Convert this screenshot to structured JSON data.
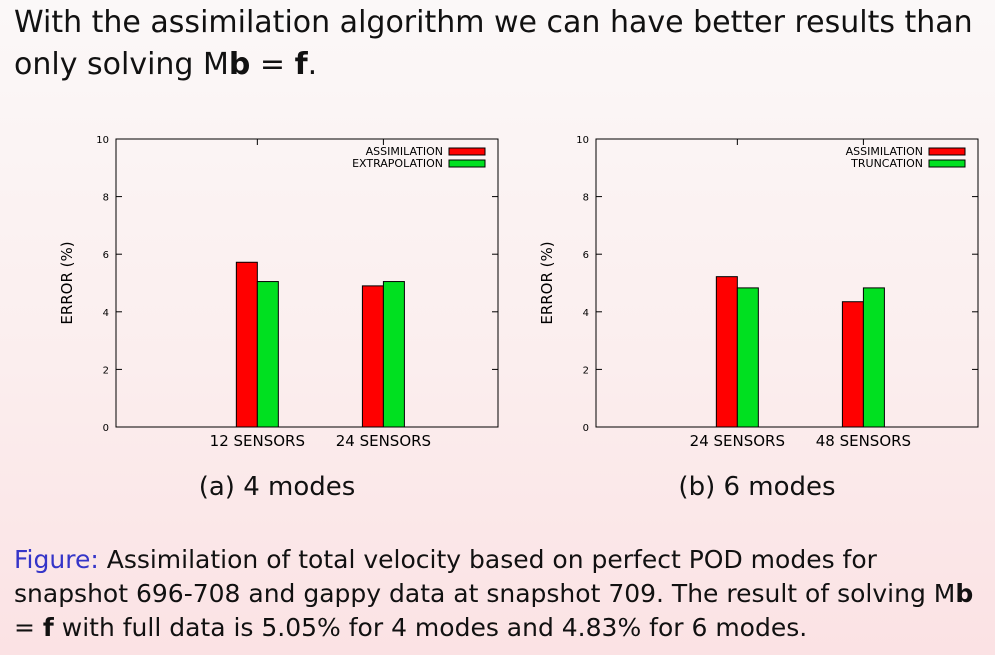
{
  "slide": {
    "heading_pre": "With the assimilation algorithm we can have better results than only solving M",
    "heading_bold_b": "b",
    "heading_eq": " = ",
    "heading_bold_f": "f",
    "heading_post": "."
  },
  "subcaptions": [
    "(a) 4 modes",
    "(b) 6 modes"
  ],
  "figure": {
    "label": "Figure:",
    "text1": " Assimilation of total velocity based on perfect POD modes for snapshot 696-708 and gappy data at snapshot 709. The result of solving M",
    "bold_b": "b",
    "eq": " = ",
    "bold_f": "f",
    "text2": " with full data is 5.05% for 4 modes and 4.83% for 6 modes."
  },
  "colors": {
    "red": "#ff0000",
    "green": "#00e020",
    "caption_label": "#3535c8"
  },
  "chart_data": [
    {
      "type": "bar",
      "categories": [
        "12 SENSORS",
        "24 SENSORS"
      ],
      "series": [
        {
          "name": "ASSIMILATION",
          "values": [
            5.72,
            4.9
          ],
          "color": "#ff0000"
        },
        {
          "name": "EXTRAPOLATION",
          "values": [
            5.05,
            5.05
          ],
          "color": "#00e020"
        }
      ],
      "ylabel": "ERROR (%)",
      "ylim": [
        0,
        10
      ],
      "yticks": [
        0,
        2,
        4,
        6,
        8,
        10
      ],
      "legend": "top-right",
      "grid": false
    },
    {
      "type": "bar",
      "categories": [
        "24 SENSORS",
        "48 SENSORS"
      ],
      "series": [
        {
          "name": "ASSIMILATION",
          "values": [
            5.22,
            4.35
          ],
          "color": "#ff0000"
        },
        {
          "name": "TRUNCATION",
          "values": [
            4.83,
            4.83
          ],
          "color": "#00e020"
        }
      ],
      "ylabel": "ERROR (%)",
      "ylim": [
        0,
        10
      ],
      "yticks": [
        0,
        2,
        4,
        6,
        8,
        10
      ],
      "legend": "top-right",
      "grid": false
    }
  ]
}
